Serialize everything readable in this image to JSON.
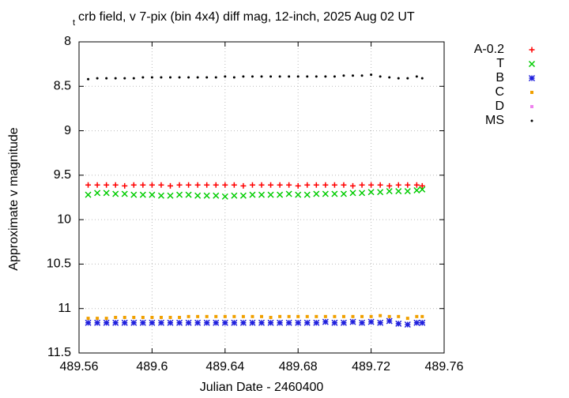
{
  "chart_data": {
    "type": "scatter",
    "title_subscript": "t",
    "title": "crb field, v 7-pix (bin 4x4) diff mag, 12-inch, 2025 Aug 02 UT",
    "x_label": "Julian Date - 2460400",
    "y_label": "Approximate v magnitude",
    "xlim": [
      489.56,
      489.76
    ],
    "xticks": [
      489.56,
      489.6,
      489.64,
      489.68,
      489.72,
      489.76
    ],
    "ylim": [
      8,
      11.5
    ],
    "y_reversed": true,
    "yticks": [
      8,
      8.5,
      9,
      9.5,
      10,
      10.5,
      11,
      11.5
    ],
    "grid": true,
    "legend": "outside-right",
    "x": [
      489.565,
      489.57,
      489.575,
      489.58,
      489.585,
      489.59,
      489.595,
      489.6,
      489.605,
      489.61,
      489.615,
      489.62,
      489.625,
      489.63,
      489.635,
      489.64,
      489.645,
      489.65,
      489.655,
      489.66,
      489.665,
      489.67,
      489.675,
      489.68,
      489.685,
      489.69,
      489.695,
      489.7,
      489.705,
      489.71,
      489.715,
      489.72,
      489.725,
      489.73,
      489.735,
      489.74,
      489.745,
      489.748
    ],
    "series": [
      {
        "name": "A-0.2",
        "color": "#ff0000",
        "marker": "plus",
        "values": [
          9.61,
          9.61,
          9.61,
          9.61,
          9.62,
          9.61,
          9.61,
          9.61,
          9.61,
          9.62,
          9.61,
          9.61,
          9.61,
          9.61,
          9.61,
          9.61,
          9.61,
          9.62,
          9.61,
          9.61,
          9.61,
          9.61,
          9.61,
          9.62,
          9.61,
          9.61,
          9.61,
          9.61,
          9.61,
          9.62,
          9.61,
          9.61,
          9.61,
          9.62,
          9.61,
          9.61,
          9.61,
          9.62
        ]
      },
      {
        "name": "T",
        "color": "#00cc00",
        "marker": "cross",
        "values": [
          9.72,
          9.7,
          9.7,
          9.71,
          9.71,
          9.72,
          9.72,
          9.72,
          9.73,
          9.73,
          9.72,
          9.72,
          9.73,
          9.73,
          9.73,
          9.74,
          9.73,
          9.73,
          9.72,
          9.72,
          9.72,
          9.72,
          9.71,
          9.72,
          9.72,
          9.71,
          9.71,
          9.71,
          9.71,
          9.7,
          9.7,
          9.69,
          9.69,
          9.68,
          9.68,
          9.68,
          9.67,
          9.66
        ]
      },
      {
        "name": "B",
        "color": "#2020dd",
        "marker": "star",
        "values": [
          11.16,
          11.16,
          11.16,
          11.16,
          11.16,
          11.16,
          11.16,
          11.16,
          11.16,
          11.16,
          11.16,
          11.16,
          11.16,
          11.16,
          11.16,
          11.16,
          11.16,
          11.16,
          11.16,
          11.16,
          11.16,
          11.16,
          11.16,
          11.16,
          11.16,
          11.16,
          11.15,
          11.16,
          11.16,
          11.15,
          11.16,
          11.15,
          11.16,
          11.14,
          11.17,
          11.18,
          11.16,
          11.16
        ]
      },
      {
        "name": "C",
        "color": "#f0a000",
        "marker": "square",
        "values": [
          11.11,
          11.11,
          11.11,
          11.1,
          11.1,
          11.1,
          11.1,
          11.1,
          11.1,
          11.1,
          11.1,
          11.09,
          11.09,
          11.09,
          11.09,
          11.09,
          11.09,
          11.09,
          11.09,
          11.09,
          11.1,
          11.09,
          11.09,
          11.09,
          11.09,
          11.09,
          11.09,
          11.09,
          11.09,
          11.09,
          11.09,
          11.09,
          11.08,
          11.09,
          11.09,
          11.11,
          11.09,
          11.09
        ]
      },
      {
        "name": "D",
        "color": "#ee82ee",
        "marker": "square",
        "values": [
          null,
          null,
          null,
          null,
          null,
          null,
          null,
          null,
          null,
          null,
          null,
          null,
          null,
          null,
          null,
          null,
          null,
          null,
          null,
          null,
          null,
          null,
          null,
          null,
          null,
          null,
          null,
          null,
          null,
          null,
          null,
          null,
          null,
          null,
          null,
          null,
          null,
          null
        ]
      },
      {
        "name": "MS",
        "color": "#000000",
        "marker": "dot",
        "values": [
          8.42,
          8.41,
          8.41,
          8.41,
          8.41,
          8.41,
          8.4,
          8.4,
          8.4,
          8.4,
          8.4,
          8.4,
          8.4,
          8.4,
          8.4,
          8.39,
          8.4,
          8.39,
          8.39,
          8.39,
          8.39,
          8.39,
          8.39,
          8.39,
          8.39,
          8.39,
          8.39,
          8.39,
          8.38,
          8.38,
          8.38,
          8.37,
          8.39,
          8.4,
          8.41,
          8.41,
          8.39,
          8.41
        ]
      }
    ]
  }
}
